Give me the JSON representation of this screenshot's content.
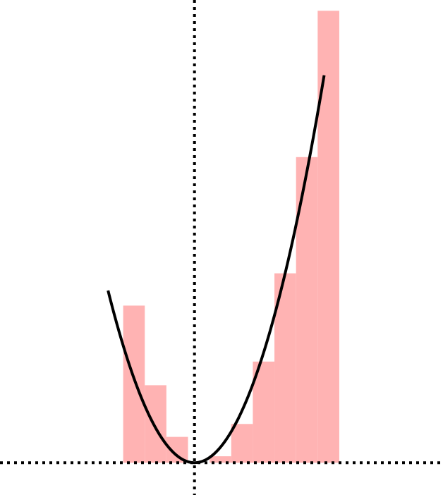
{
  "chart_data": {
    "type": "bar",
    "description_type": "step bars with overlaid parabola curve",
    "bar_color": "#ffb3b3",
    "curve_color": "#000000",
    "axis_color": "#000000",
    "axis_style": "dotted",
    "grid": false,
    "legend": "none",
    "xlim": [
      -9,
      11.5
    ],
    "ylim": [
      -1.5,
      21.5
    ],
    "bars": [
      {
        "x0": -3.3,
        "x1": -2.3,
        "value": 7.3
      },
      {
        "x0": -2.3,
        "x1": -1.3,
        "value": 3.6
      },
      {
        "x0": -1.3,
        "x1": -0.3,
        "value": 1.2
      },
      {
        "x0": -0.3,
        "x1": 0.7,
        "value": 0.0
      },
      {
        "x0": 0.7,
        "x1": 1.7,
        "value": 0.3
      },
      {
        "x0": 1.7,
        "x1": 2.7,
        "value": 1.8
      },
      {
        "x0": 2.7,
        "x1": 3.7,
        "value": 4.7
      },
      {
        "x0": 3.7,
        "x1": 4.7,
        "value": 8.8
      },
      {
        "x0": 4.7,
        "x1": 5.7,
        "value": 14.2
      },
      {
        "x0": 5.7,
        "x1": 6.7,
        "value": 21.0
      }
    ],
    "curve": {
      "function": "y = 0.5 * x^2",
      "x_range": [
        -4.0,
        6.0
      ]
    }
  }
}
